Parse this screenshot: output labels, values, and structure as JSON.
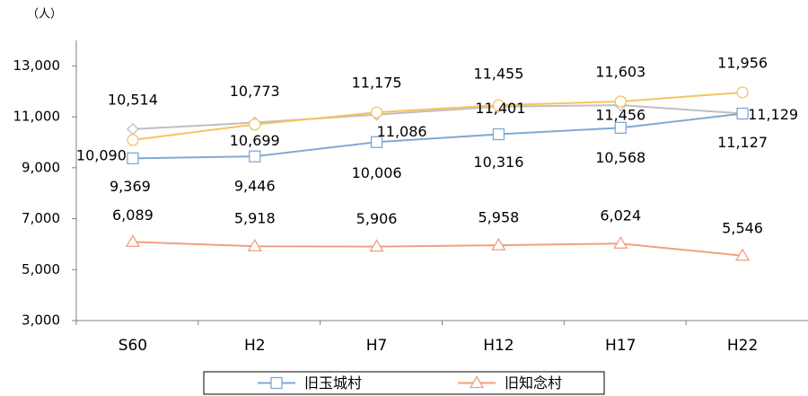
{
  "chart_data": {
    "type": "line",
    "y_axis_label": "（人）",
    "categories": [
      "S60",
      "H2",
      "H7",
      "H12",
      "H17",
      "H22"
    ],
    "series": [
      {
        "color": "#bfbfbf",
        "marker": "diamond",
        "values": [
          10514,
          10773,
          11086,
          11401,
          11456,
          11129
        ],
        "value_labels": [
          "10,514",
          "10,773",
          "11,086",
          "11,401",
          "11,456",
          "11,129"
        ]
      },
      {
        "color": "#f5c461",
        "marker": "circle",
        "values": [
          10090,
          10699,
          11175,
          11455,
          11603,
          11956
        ],
        "value_labels": [
          "10,090",
          "10,699",
          "11,175",
          "11,455",
          "11,603",
          "11,956"
        ]
      },
      {
        "name": "旧玉城村",
        "color": "#7fa9d4",
        "marker": "square",
        "values": [
          9369,
          9446,
          10006,
          10316,
          10568,
          11127
        ],
        "value_labels": [
          "9,369",
          "9,446",
          "10,006",
          "10,316",
          "10,568",
          "11,127"
        ]
      },
      {
        "name": "旧知念村",
        "color": "#f0a07f",
        "marker": "triangle",
        "values": [
          6089,
          5918,
          5906,
          5958,
          6024,
          5546
        ],
        "value_labels": [
          "6,089",
          "5,918",
          "5,906",
          "5,958",
          "6,024",
          "5,546"
        ]
      }
    ],
    "ylim": [
      3000,
      14000
    ],
    "yticks": [
      {
        "value": 3000,
        "label": "3,000"
      },
      {
        "value": 5000,
        "label": "5,000"
      },
      {
        "value": 7000,
        "label": "7,000"
      },
      {
        "value": 9000,
        "label": "9,000"
      },
      {
        "value": 11000,
        "label": "11,000"
      },
      {
        "value": 13000,
        "label": "13,000"
      }
    ],
    "legend": "bottom"
  }
}
